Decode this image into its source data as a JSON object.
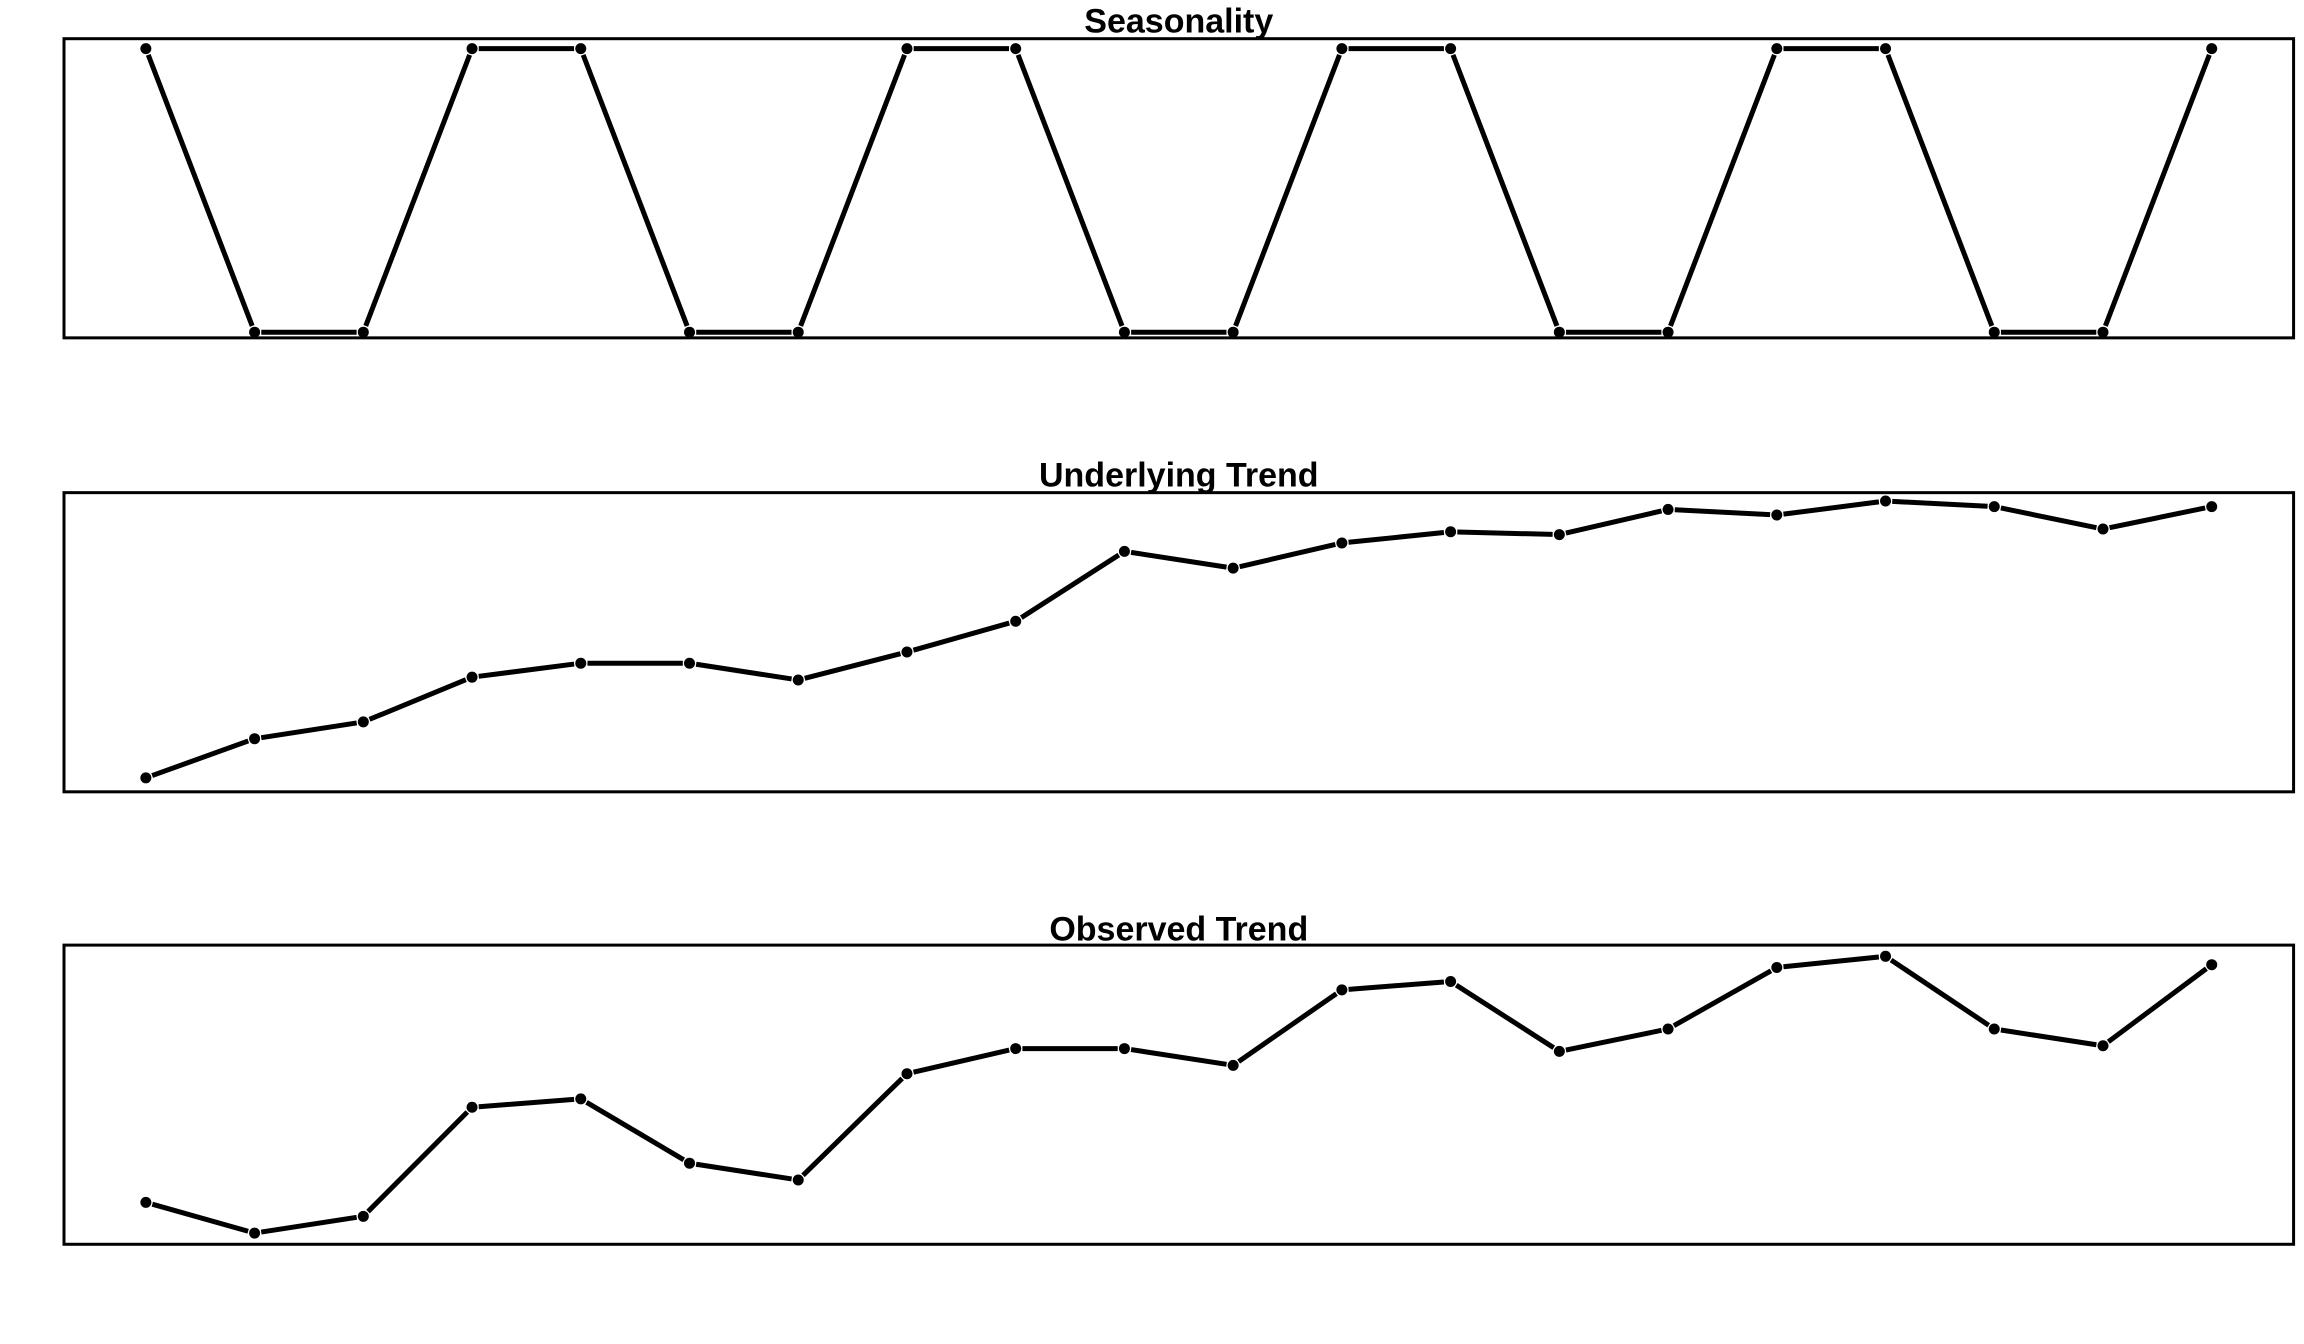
{
  "chart_data": [
    {
      "type": "line",
      "title": "Seasonality",
      "xlabel": "",
      "ylabel": "",
      "axes_visible": false,
      "grid": false,
      "x": [
        1,
        2,
        3,
        4,
        5,
        6,
        7,
        8,
        9,
        10,
        11,
        12,
        13,
        14,
        15,
        16,
        17,
        18,
        19,
        20
      ],
      "ylim": [
        -1.04,
        1.07
      ],
      "series": [
        {
          "values": [
            1,
            -1,
            -1,
            1,
            1,
            -1,
            -1,
            1,
            1,
            -1,
            -1,
            1,
            1,
            -1,
            -1,
            1,
            1,
            -1,
            -1,
            1
          ]
        }
      ]
    },
    {
      "type": "line",
      "title": "Underlying Trend",
      "xlabel": "",
      "ylabel": "",
      "axes_visible": false,
      "grid": false,
      "x": [
        1,
        2,
        3,
        4,
        5,
        6,
        7,
        8,
        9,
        10,
        11,
        12,
        13,
        14,
        15,
        16,
        17,
        18,
        19,
        20
      ],
      "ylim": [
        -0.05,
        1.02
      ],
      "series": [
        {
          "values": [
            0.0,
            0.14,
            0.2,
            0.36,
            0.41,
            0.41,
            0.35,
            0.45,
            0.56,
            0.81,
            0.75,
            0.84,
            0.88,
            0.87,
            0.96,
            0.94,
            0.99,
            0.97,
            0.89,
            0.97
          ]
        }
      ]
    },
    {
      "type": "line",
      "title": "Observed Trend",
      "xlabel": "",
      "ylabel": "",
      "axes_visible": false,
      "grid": false,
      "x": [
        1,
        2,
        3,
        4,
        5,
        6,
        7,
        8,
        9,
        10,
        11,
        12,
        13,
        14,
        15,
        16,
        17,
        18,
        19,
        20
      ],
      "ylim": [
        -0.04,
        1.03
      ],
      "series": [
        {
          "values": [
            0.11,
            0.0,
            0.06,
            0.45,
            0.48,
            0.25,
            0.19,
            0.57,
            0.66,
            0.66,
            0.6,
            0.87,
            0.9,
            0.65,
            0.73,
            0.95,
            0.99,
            0.73,
            0.67,
            0.96
          ]
        }
      ]
    }
  ]
}
